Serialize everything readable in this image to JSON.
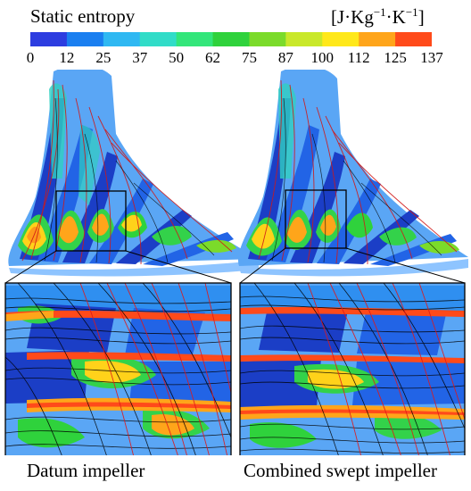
{
  "legend": {
    "title": "Static entropy",
    "unit_open": "[J·Kg",
    "unit_exp1": "−1",
    "unit_mid": "·K",
    "unit_exp2": "−1",
    "unit_close": "]",
    "ticks": [
      "0",
      "12",
      "25",
      "37",
      "50",
      "62",
      "75",
      "87",
      "100",
      "112",
      "125",
      "137"
    ],
    "colors": [
      "#2d3de0",
      "#1a7ff0",
      "#2fb8f2",
      "#31dcc8",
      "#33e67a",
      "#2fd23c",
      "#7bdb2a",
      "#c9e82a",
      "#ffe81a",
      "#ffa51a",
      "#ff4a1a"
    ]
  },
  "captions": {
    "left": "Datum impeller",
    "right": "Combined swept impeller"
  }
}
